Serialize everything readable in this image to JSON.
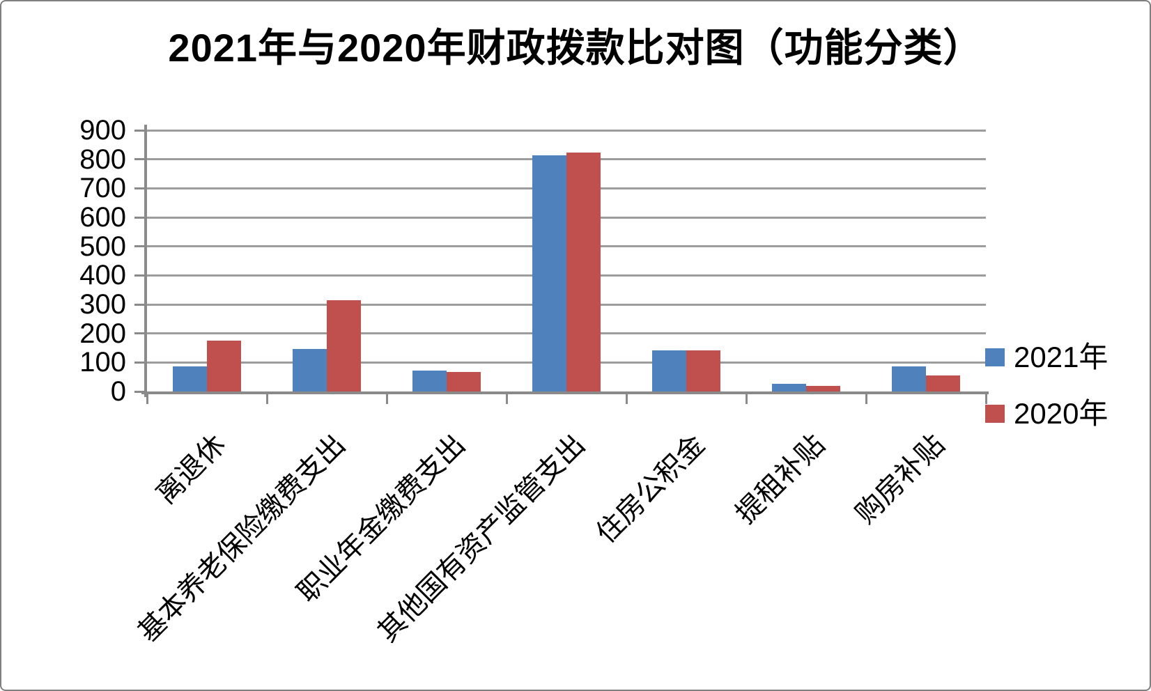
{
  "chart_data": {
    "type": "bar",
    "title": "2021年与2020年财政拨款比对图（功能分类）",
    "categories": [
      "离退休",
      "基本养老保险缴费支出",
      "职业年金缴费支出",
      "其他国有资产监管支出",
      "住房公积金",
      "提租补贴",
      "购房补贴"
    ],
    "series": [
      {
        "name": "2021年",
        "color": "#4F81BD",
        "values": [
          86,
          146,
          71,
          813,
          142,
          26,
          86
        ]
      },
      {
        "name": "2020年",
        "color": "#C0504D",
        "values": [
          175,
          314,
          68,
          824,
          142,
          20,
          56
        ]
      }
    ],
    "ylim": [
      0,
      900
    ],
    "yticks": [
      0,
      100,
      200,
      300,
      400,
      500,
      600,
      700,
      800,
      900
    ],
    "grid": true,
    "legend_position": "right",
    "grid_color": "#9C9C9C",
    "axis_color": "#8A8A8A",
    "frame_border_color": "#7F7F7F",
    "background_color": "#FFFFFF"
  }
}
